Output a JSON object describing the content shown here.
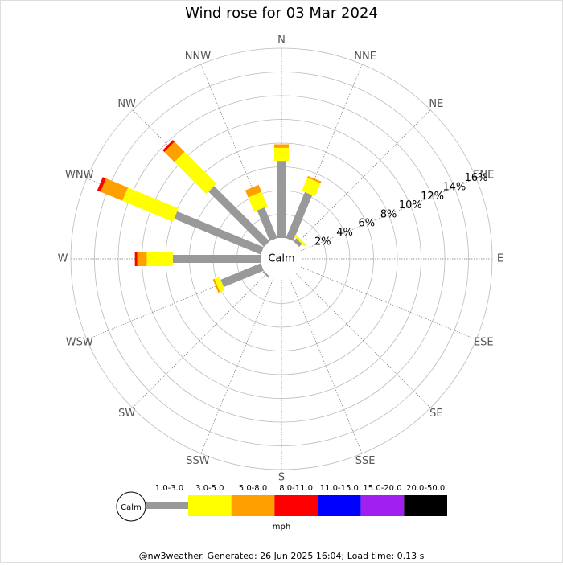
{
  "chart_data": {
    "type": "windrose",
    "title": "Wind rose for 03 Mar 2024",
    "calm_label": "Calm",
    "categories": [
      "N",
      "NNE",
      "NE",
      "ENE",
      "E",
      "ESE",
      "SE",
      "SSE",
      "S",
      "SSW",
      "SW",
      "WSW",
      "W",
      "WNW",
      "NW",
      "NNW"
    ],
    "series": [
      {
        "name": "1.0-3.0",
        "color": "#999999",
        "values": [
          6.5,
          4.2,
          0.35,
          0,
          0,
          0,
          0,
          0,
          0,
          0,
          0.15,
          3.65,
          7.4,
          7.9,
          6.6,
          2.8
        ]
      },
      {
        "name": "3.0-5.0",
        "color": "#ffff00",
        "values": [
          1.1,
          1.2,
          0.2,
          0,
          0,
          0,
          0,
          0,
          0,
          0,
          0,
          0.45,
          2.2,
          4.6,
          3.8,
          1.3
        ]
      },
      {
        "name": "5.0-8.0",
        "color": "#ffa000",
        "values": [
          0.3,
          0.15,
          0,
          0,
          0,
          0,
          0,
          0,
          0,
          0,
          0,
          0.15,
          0.8,
          2.0,
          1.2,
          0.65
        ]
      },
      {
        "name": "8.0-11.0",
        "color": "#ff0000",
        "values": [
          0,
          0,
          0,
          0,
          0,
          0,
          0,
          0,
          0,
          0,
          0,
          0,
          0.2,
          0.3,
          0.2,
          0
        ]
      },
      {
        "name": "11.0-15.0",
        "color": "#0000ff",
        "values": [
          0,
          0,
          0,
          0,
          0,
          0,
          0,
          0,
          0,
          0,
          0,
          0,
          0,
          0,
          0,
          0
        ]
      },
      {
        "name": "15.0-20.0",
        "color": "#a020f0",
        "values": [
          0,
          0,
          0,
          0,
          0,
          0,
          0,
          0,
          0,
          0,
          0,
          0,
          0,
          0,
          0,
          0
        ]
      },
      {
        "name": "20.0-50.0",
        "color": "#000000",
        "values": [
          0,
          0,
          0,
          0,
          0,
          0,
          0,
          0,
          0,
          0,
          0,
          0,
          0,
          0,
          0,
          0
        ]
      }
    ],
    "rlim": [
      0,
      16
    ],
    "rticks": [
      {
        "value": 2,
        "label": "2%"
      },
      {
        "value": 4,
        "label": "4%"
      },
      {
        "value": 6,
        "label": "6%"
      },
      {
        "value": 8,
        "label": "8%"
      },
      {
        "value": 10,
        "label": "10%"
      },
      {
        "value": 12,
        "label": "12%"
      },
      {
        "value": 14,
        "label": "14%"
      },
      {
        "value": 16,
        "label": "16%"
      }
    ],
    "legend_unit": "mph",
    "footer": "@nw3weather. Generated: 26 Jun 2025 16:04; Load time: 0.13 s"
  }
}
